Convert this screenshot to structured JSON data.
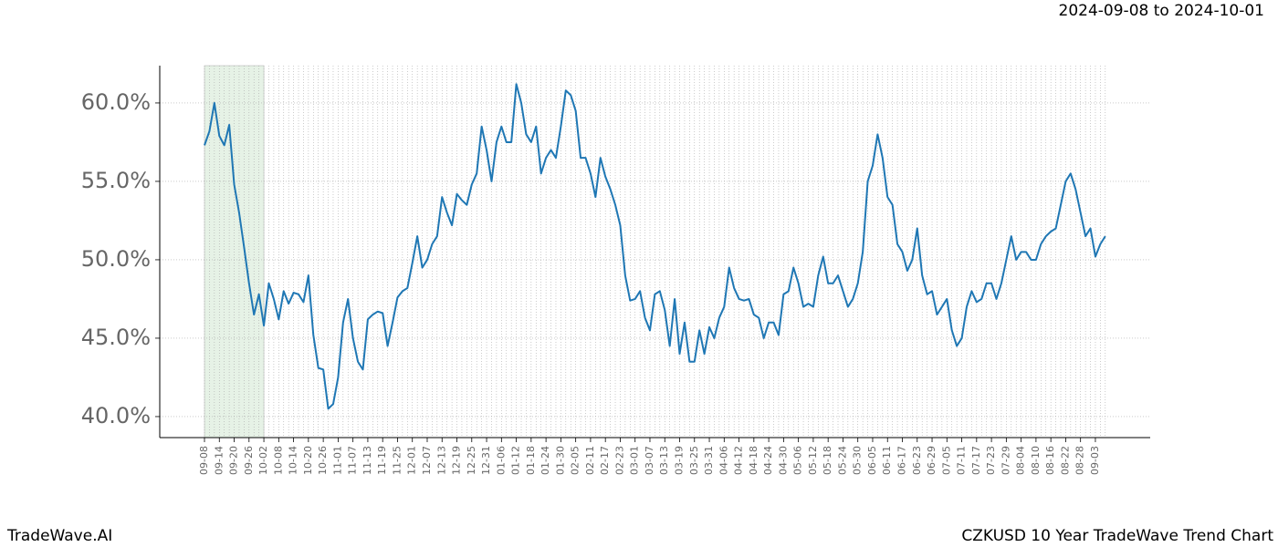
{
  "chart_data": {
    "type": "line",
    "title": "CZKUSD 10 Year TradeWave Trend Chart",
    "subtitle": "2024-09-08 to 2024-10-01",
    "brand": "TradeWave.AI",
    "categories": [
      "09-08",
      null,
      null,
      "09-14",
      null,
      null,
      "09-20",
      null,
      null,
      "09-26",
      null,
      null,
      "10-02",
      null,
      null,
      "10-08",
      null,
      null,
      "10-14",
      null,
      null,
      "10-20",
      null,
      null,
      "10-26",
      null,
      null,
      "11-01",
      null,
      null,
      "11-07",
      null,
      null,
      "11-13",
      null,
      null,
      "11-19",
      null,
      null,
      "11-25",
      null,
      null,
      "12-01",
      null,
      null,
      "12-07",
      null,
      null,
      "12-13",
      null,
      null,
      "12-19",
      null,
      null,
      "12-25",
      null,
      null,
      "12-31",
      null,
      null,
      "01-06",
      null,
      null,
      "01-12",
      null,
      null,
      "01-18",
      null,
      null,
      "01-24",
      null,
      null,
      "01-30",
      null,
      null,
      "02-05",
      null,
      null,
      "02-11",
      null,
      null,
      "02-17",
      null,
      null,
      "02-23",
      null,
      null,
      "03-01",
      null,
      null,
      "03-07",
      null,
      null,
      "03-13",
      null,
      null,
      "03-19",
      null,
      null,
      "03-25",
      null,
      null,
      "03-31",
      null,
      null,
      "04-06",
      null,
      null,
      "04-12",
      null,
      null,
      "04-18",
      null,
      null,
      "04-24",
      null,
      null,
      "04-30",
      null,
      null,
      "05-06",
      null,
      null,
      "05-12",
      null,
      null,
      "05-18",
      null,
      null,
      "05-24",
      null,
      null,
      "05-30",
      null,
      null,
      "06-05",
      null,
      null,
      "06-11",
      null,
      null,
      "06-17",
      null,
      null,
      "06-23",
      null,
      null,
      "06-29",
      null,
      null,
      "07-05",
      null,
      null,
      "07-11",
      null,
      null,
      "07-17",
      null,
      null,
      "07-23",
      null,
      null,
      "07-29",
      null,
      null,
      "08-04",
      null,
      null,
      "08-10",
      null,
      null,
      "08-16",
      null,
      null,
      "08-22",
      null,
      null,
      "08-28",
      null,
      null,
      "09-03",
      null,
      null
    ],
    "series": [
      {
        "color": "#1f77b4",
        "values": [
          57.3,
          58.2,
          60.0,
          57.9,
          57.3,
          58.6,
          54.8,
          53.0,
          50.8,
          48.5,
          46.5,
          47.8,
          45.8,
          48.5,
          47.5,
          46.2,
          48.0,
          47.2,
          47.9,
          47.8,
          47.3,
          49.0,
          45.2,
          43.1,
          43.0,
          40.5,
          40.8,
          42.5,
          46.0,
          47.5,
          45.0,
          43.5,
          43.0,
          46.2,
          46.5,
          46.7,
          46.6,
          44.5,
          46.0,
          47.6,
          48.0,
          48.2,
          49.8,
          51.5,
          49.5,
          50.0,
          51.0,
          51.5,
          54.0,
          53.0,
          52.2,
          54.2,
          53.8,
          53.5,
          54.8,
          55.5,
          58.5,
          57.0,
          55.0,
          57.5,
          58.5,
          57.5,
          57.5,
          61.2,
          60.0,
          58.0,
          57.5,
          58.5,
          55.5,
          56.5,
          57.0,
          56.5,
          58.5,
          60.8,
          60.5,
          59.5,
          56.5,
          56.5,
          55.5,
          54.0,
          56.5,
          55.3,
          54.5,
          53.5,
          52.2,
          49.0,
          47.4,
          47.5,
          48.0,
          46.3,
          45.5,
          47.8,
          48.0,
          46.8,
          44.5,
          47.5,
          44.0,
          46.0,
          43.5,
          43.5,
          45.5,
          44.0,
          45.7,
          45.0,
          46.3,
          47.0,
          49.5,
          48.2,
          47.5,
          47.4,
          47.5,
          46.5,
          46.3,
          45.0,
          46.0,
          46.0,
          45.2,
          47.8,
          48.0,
          49.5,
          48.5,
          47.0,
          47.2,
          47.0,
          49.0,
          50.2,
          48.5,
          48.5,
          49.0,
          48.0,
          47.0,
          47.5,
          48.5,
          50.5,
          55.0,
          56.0,
          58.0,
          56.5,
          54.0,
          53.5,
          51.0,
          50.5,
          49.3,
          50.0,
          52.0,
          49.0,
          47.8,
          48.0,
          46.5,
          47.0,
          47.5,
          45.5,
          44.5,
          45.0,
          47.0,
          48.0,
          47.3,
          47.5,
          48.5,
          48.5,
          47.5,
          48.5,
          50.0,
          51.5,
          50.0,
          50.5,
          50.5,
          50.0,
          50.0,
          51.0,
          51.5,
          51.8,
          52.0,
          53.5,
          55.0,
          55.5,
          54.5,
          53.0,
          51.5,
          52.0,
          50.2,
          51.0,
          51.5
        ]
      }
    ],
    "highlight": {
      "from": 0,
      "to": 12,
      "color": "#e6f2e6"
    },
    "ylim": [
      38.66,
      62.38
    ],
    "yticks": [
      {
        "value": 40,
        "label": "40.0%"
      },
      {
        "value": 45,
        "label": "45.0%"
      },
      {
        "value": 50,
        "label": "50.0%"
      },
      {
        "value": 55,
        "label": "55.0%"
      },
      {
        "value": 60,
        "label": "60.0%"
      }
    ],
    "grid": true
  }
}
